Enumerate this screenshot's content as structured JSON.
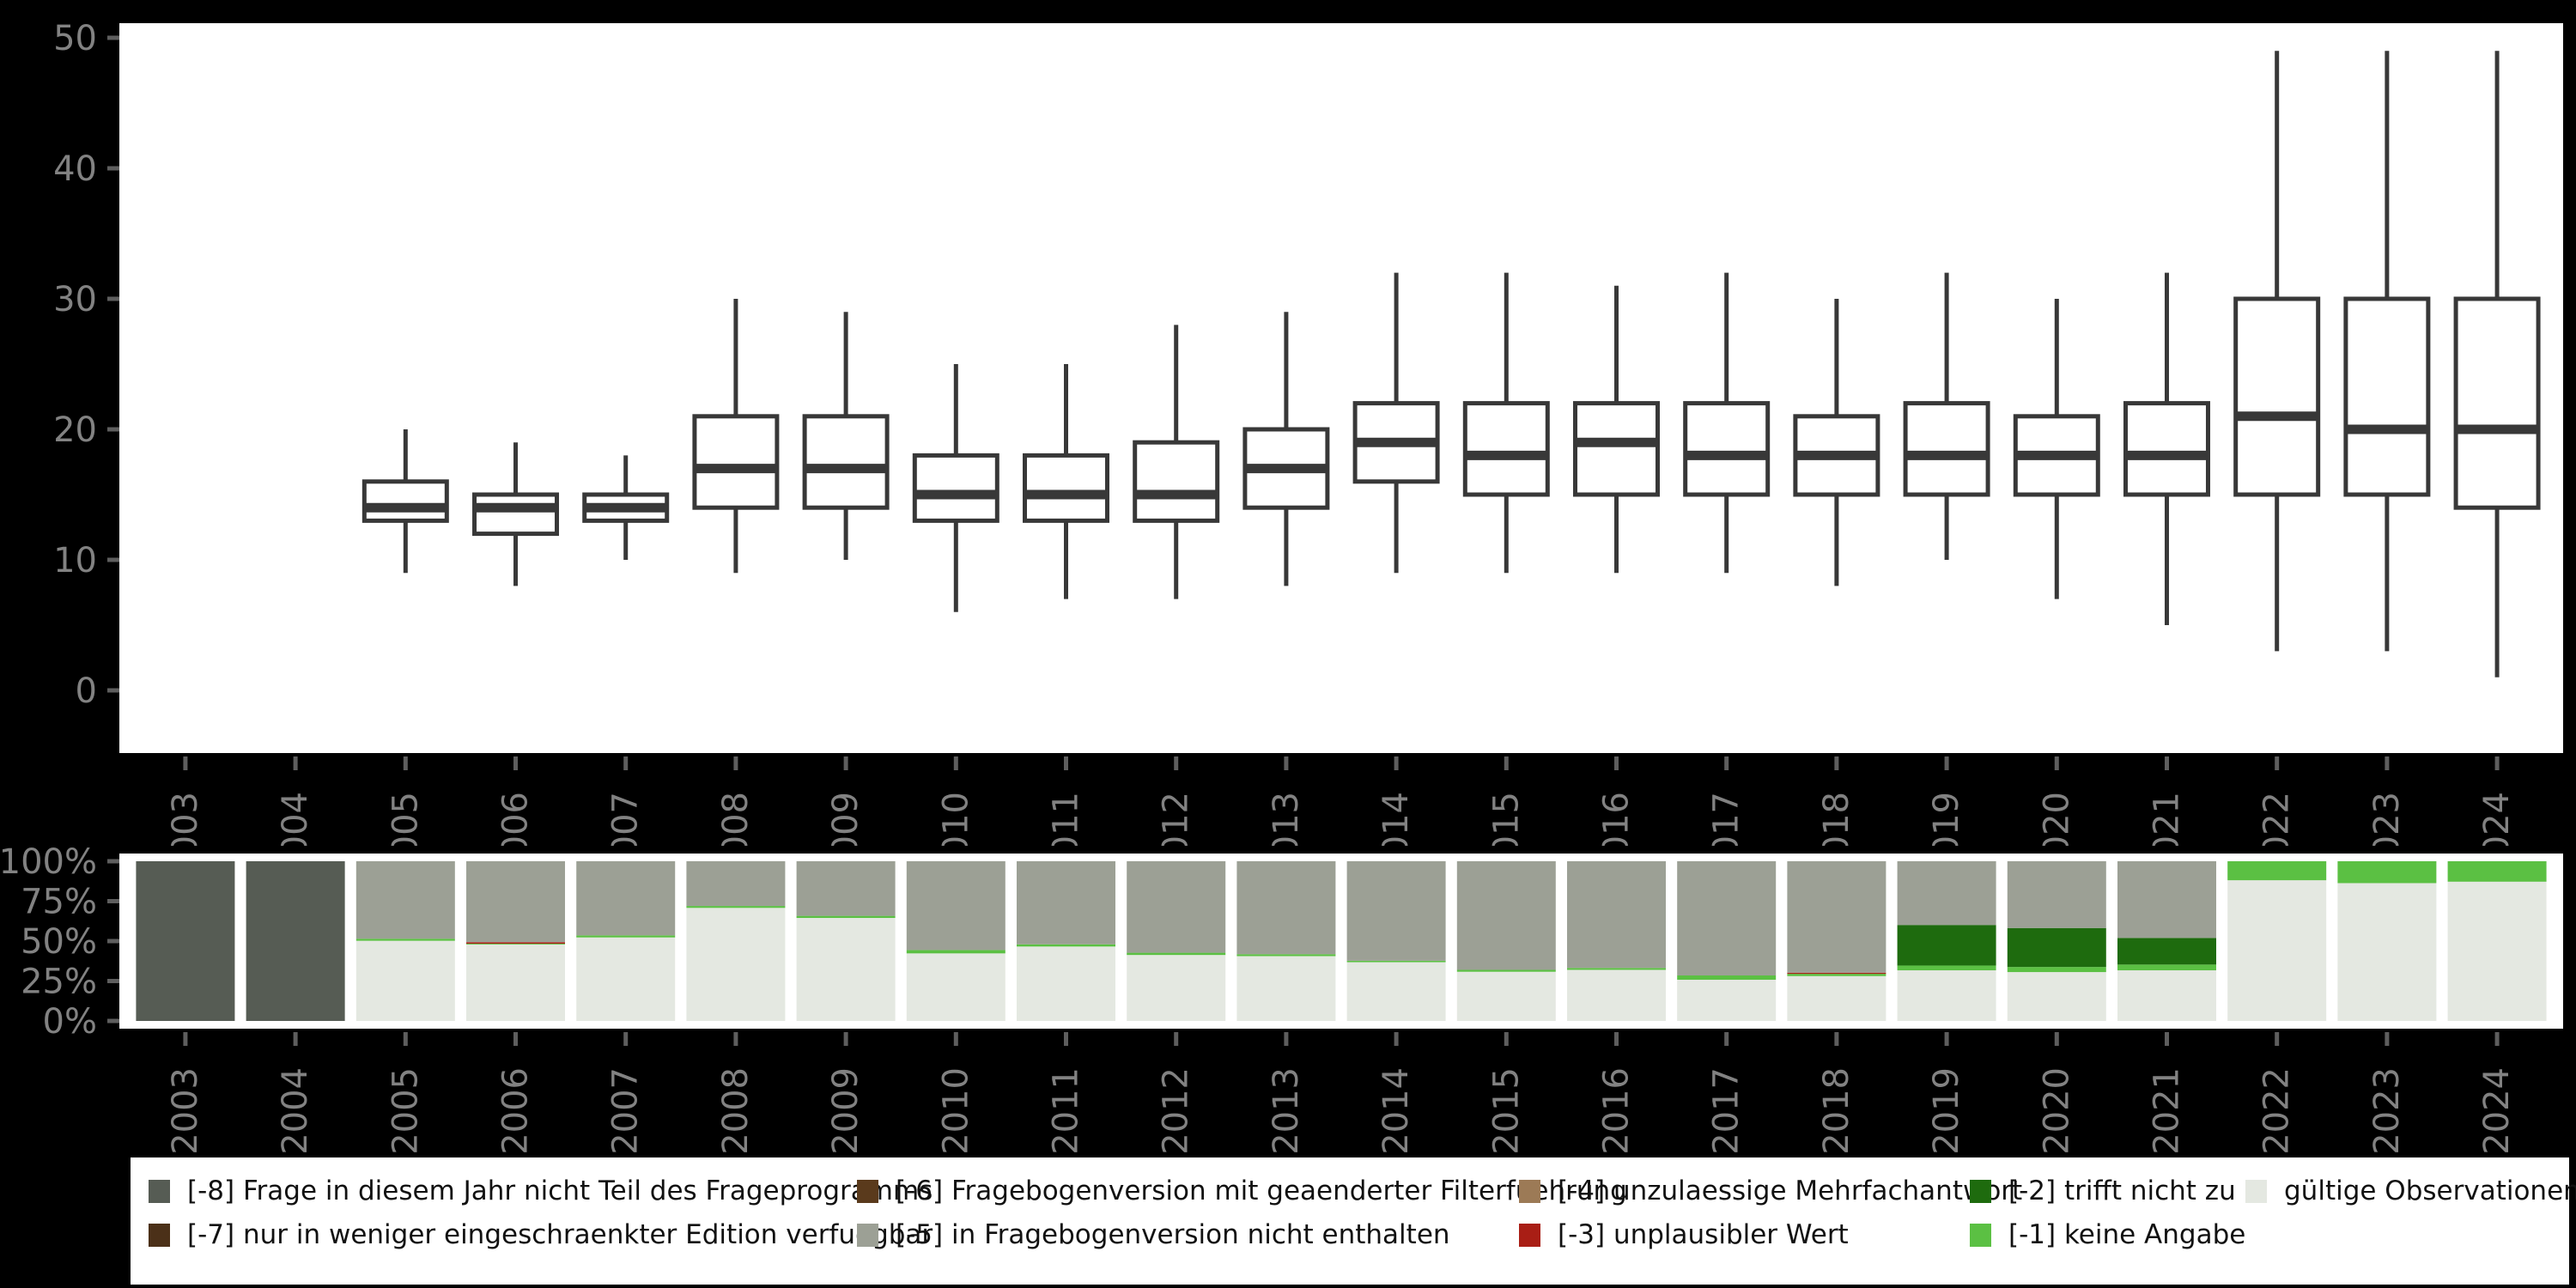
{
  "style": {
    "background": "#000000",
    "panel": "#ffffff",
    "box_stroke": "#383838",
    "axis_text": "#828282",
    "tick_color": "#5e5e5e",
    "legend_text": "#111111"
  },
  "chart_data": [
    {
      "type": "boxplot",
      "title": "",
      "xlabel": "",
      "ylabel": "",
      "ylim": [
        0,
        50
      ],
      "yticks": [
        0,
        10,
        20,
        30,
        40,
        50
      ],
      "grid": false,
      "categories": [
        "2003",
        "2004",
        "2005",
        "2006",
        "2007",
        "2008",
        "2009",
        "2010",
        "2011",
        "2012",
        "2013",
        "2014",
        "2015",
        "2016",
        "2017",
        "2018",
        "2019",
        "2020",
        "2021",
        "2022",
        "2023",
        "2024"
      ],
      "boxes": [
        null,
        null,
        {
          "low": 9,
          "q1": 13,
          "median": 14,
          "q3": 16,
          "high": 20
        },
        {
          "low": 8,
          "q1": 12,
          "median": 14,
          "q3": 15,
          "high": 19
        },
        {
          "low": 10,
          "q1": 13,
          "median": 14,
          "q3": 15,
          "high": 18
        },
        {
          "low": 9,
          "q1": 14,
          "median": 17,
          "q3": 21,
          "high": 30
        },
        {
          "low": 10,
          "q1": 14,
          "median": 17,
          "q3": 21,
          "high": 29
        },
        {
          "low": 6,
          "q1": 13,
          "median": 15,
          "q3": 18,
          "high": 25
        },
        {
          "low": 7,
          "q1": 13,
          "median": 15,
          "q3": 18,
          "high": 25
        },
        {
          "low": 7,
          "q1": 13,
          "median": 15,
          "q3": 19,
          "high": 28
        },
        {
          "low": 8,
          "q1": 14,
          "median": 17,
          "q3": 20,
          "high": 29
        },
        {
          "low": 9,
          "q1": 16,
          "median": 19,
          "q3": 22,
          "high": 32
        },
        {
          "low": 9,
          "q1": 15,
          "median": 18,
          "q3": 22,
          "high": 32
        },
        {
          "low": 9,
          "q1": 15,
          "median": 19,
          "q3": 22,
          "high": 31
        },
        {
          "low": 9,
          "q1": 15,
          "median": 18,
          "q3": 22,
          "high": 32
        },
        {
          "low": 8,
          "q1": 15,
          "median": 18,
          "q3": 21,
          "high": 30
        },
        {
          "low": 10,
          "q1": 15,
          "median": 18,
          "q3": 22,
          "high": 32
        },
        {
          "low": 7,
          "q1": 15,
          "median": 18,
          "q3": 21,
          "high": 30
        },
        {
          "low": 5,
          "q1": 15,
          "median": 18,
          "q3": 22,
          "high": 32
        },
        {
          "low": 3,
          "q1": 15,
          "median": 21,
          "q3": 30,
          "high": 49
        },
        {
          "low": 3,
          "q1": 15,
          "median": 20,
          "q3": 30,
          "high": 49
        },
        {
          "low": 1,
          "q1": 14,
          "median": 20,
          "q3": 30,
          "high": 49
        }
      ]
    },
    {
      "type": "bar",
      "subtype": "stacked-percent",
      "title": "",
      "ylabel": "",
      "ylim": [
        0,
        100
      ],
      "yticks": [
        "0%",
        "25%",
        "50%",
        "75%",
        "100%"
      ],
      "ytick_values": [
        0,
        25,
        50,
        75,
        100
      ],
      "categories": [
        "2003",
        "2004",
        "2005",
        "2006",
        "2007",
        "2008",
        "2009",
        "2010",
        "2011",
        "2012",
        "2013",
        "2014",
        "2015",
        "2016",
        "2017",
        "2018",
        "2019",
        "2020",
        "2021",
        "2022",
        "2023",
        "2024"
      ],
      "bars": [
        {
          "year": "2003",
          "segments": [
            {
              "key": "m8",
              "pct": 100
            }
          ]
        },
        {
          "year": "2004",
          "segments": [
            {
              "key": "m8",
              "pct": 100
            }
          ]
        },
        {
          "year": "2005",
          "segments": [
            {
              "key": "valid",
              "pct": 50.2
            },
            {
              "key": "m1",
              "pct": 1.3
            },
            {
              "key": "m5",
              "pct": 48.5
            }
          ]
        },
        {
          "year": "2006",
          "segments": [
            {
              "key": "valid",
              "pct": 47.9
            },
            {
              "key": "m1",
              "pct": 0.5
            },
            {
              "key": "m3",
              "pct": 0.9
            },
            {
              "key": "m5",
              "pct": 50.7
            }
          ]
        },
        {
          "year": "2007",
          "segments": [
            {
              "key": "valid",
              "pct": 52.3
            },
            {
              "key": "m1",
              "pct": 1.3
            },
            {
              "key": "m5",
              "pct": 46.4
            }
          ]
        },
        {
          "year": "2008",
          "segments": [
            {
              "key": "valid",
              "pct": 70.8
            },
            {
              "key": "m1",
              "pct": 1.2
            },
            {
              "key": "m5",
              "pct": 28.0
            }
          ]
        },
        {
          "year": "2009",
          "segments": [
            {
              "key": "valid",
              "pct": 64.5
            },
            {
              "key": "m1",
              "pct": 1.3
            },
            {
              "key": "m5",
              "pct": 34.2
            }
          ]
        },
        {
          "year": "2010",
          "segments": [
            {
              "key": "valid",
              "pct": 42.3
            },
            {
              "key": "m1",
              "pct": 2.1
            },
            {
              "key": "m5",
              "pct": 55.6
            }
          ]
        },
        {
          "year": "2011",
          "segments": [
            {
              "key": "valid",
              "pct": 46.6
            },
            {
              "key": "m1",
              "pct": 1.4
            },
            {
              "key": "m5",
              "pct": 52.0
            }
          ]
        },
        {
          "year": "2012",
          "segments": [
            {
              "key": "valid",
              "pct": 41.3
            },
            {
              "key": "m1",
              "pct": 1.4
            },
            {
              "key": "m5",
              "pct": 57.3
            }
          ]
        },
        {
          "year": "2013",
          "segments": [
            {
              "key": "valid",
              "pct": 40.6
            },
            {
              "key": "m1",
              "pct": 1.2
            },
            {
              "key": "m5",
              "pct": 58.2
            }
          ]
        },
        {
          "year": "2014",
          "segments": [
            {
              "key": "valid",
              "pct": 36.8
            },
            {
              "key": "m1",
              "pct": 0.9
            },
            {
              "key": "m5",
              "pct": 62.3
            }
          ]
        },
        {
          "year": "2015",
          "segments": [
            {
              "key": "valid",
              "pct": 30.8
            },
            {
              "key": "m1",
              "pct": 1.2
            },
            {
              "key": "m5",
              "pct": 68.0
            }
          ]
        },
        {
          "year": "2016",
          "segments": [
            {
              "key": "valid",
              "pct": 32.0
            },
            {
              "key": "m1",
              "pct": 1.2
            },
            {
              "key": "m5",
              "pct": 66.8
            }
          ]
        },
        {
          "year": "2017",
          "segments": [
            {
              "key": "valid",
              "pct": 25.8
            },
            {
              "key": "m1",
              "pct": 2.7
            },
            {
              "key": "m5",
              "pct": 71.5
            }
          ]
        },
        {
          "year": "2018",
          "segments": [
            {
              "key": "valid",
              "pct": 28.1
            },
            {
              "key": "m1",
              "pct": 1.4
            },
            {
              "key": "m3",
              "pct": 0.7
            },
            {
              "key": "m5",
              "pct": 69.8
            }
          ]
        },
        {
          "year": "2019",
          "segments": [
            {
              "key": "valid",
              "pct": 31.7
            },
            {
              "key": "m1",
              "pct": 3.0
            },
            {
              "key": "m2",
              "pct": 25.4
            },
            {
              "key": "m5",
              "pct": 39.9
            }
          ]
        },
        {
          "year": "2020",
          "segments": [
            {
              "key": "valid",
              "pct": 30.6
            },
            {
              "key": "m1",
              "pct": 3.2
            },
            {
              "key": "m2",
              "pct": 24.4
            },
            {
              "key": "m5",
              "pct": 41.8
            }
          ]
        },
        {
          "year": "2021",
          "segments": [
            {
              "key": "valid",
              "pct": 31.7
            },
            {
              "key": "m1",
              "pct": 3.6
            },
            {
              "key": "m2",
              "pct": 16.7
            },
            {
              "key": "m5",
              "pct": 48.0
            }
          ]
        },
        {
          "year": "2022",
          "segments": [
            {
              "key": "valid",
              "pct": 88.1
            },
            {
              "key": "m1",
              "pct": 11.9
            }
          ]
        },
        {
          "year": "2023",
          "segments": [
            {
              "key": "valid",
              "pct": 86.3
            },
            {
              "key": "m1",
              "pct": 13.7
            }
          ]
        },
        {
          "year": "2024",
          "segments": [
            {
              "key": "valid",
              "pct": 87.2
            },
            {
              "key": "m1",
              "pct": 12.8
            }
          ]
        }
      ]
    }
  ],
  "legend": {
    "items": [
      {
        "key": "m8",
        "label": "[-8] Frage in diesem Jahr nicht Teil des Frageprogramms",
        "color": "#565c54"
      },
      {
        "key": "m7",
        "label": "[-7] nur in weniger eingeschraenkter Edition verfuegbar",
        "color": "#4b3018"
      },
      {
        "key": "m6",
        "label": "[-6] Fragebogenversion mit geaenderter Filterfuehrung",
        "color": "#5a3a1c"
      },
      {
        "key": "m5",
        "label": "[-5] in Fragebogenversion nicht enthalten",
        "color": "#9ca095"
      },
      {
        "key": "m4",
        "label": "[-4] unzulaessige Mehrfachantwort",
        "color": "#9c7a56"
      },
      {
        "key": "m3",
        "label": "[-3] unplausibler Wert",
        "color": "#a91e15"
      },
      {
        "key": "m2",
        "label": "[-2] trifft nicht zu",
        "color": "#1e6b0e"
      },
      {
        "key": "m1",
        "label": "[-1] keine Angabe",
        "color": "#5bc043"
      },
      {
        "key": "valid",
        "label": "gültige Observationen",
        "color": "#e4e8e1"
      }
    ]
  }
}
